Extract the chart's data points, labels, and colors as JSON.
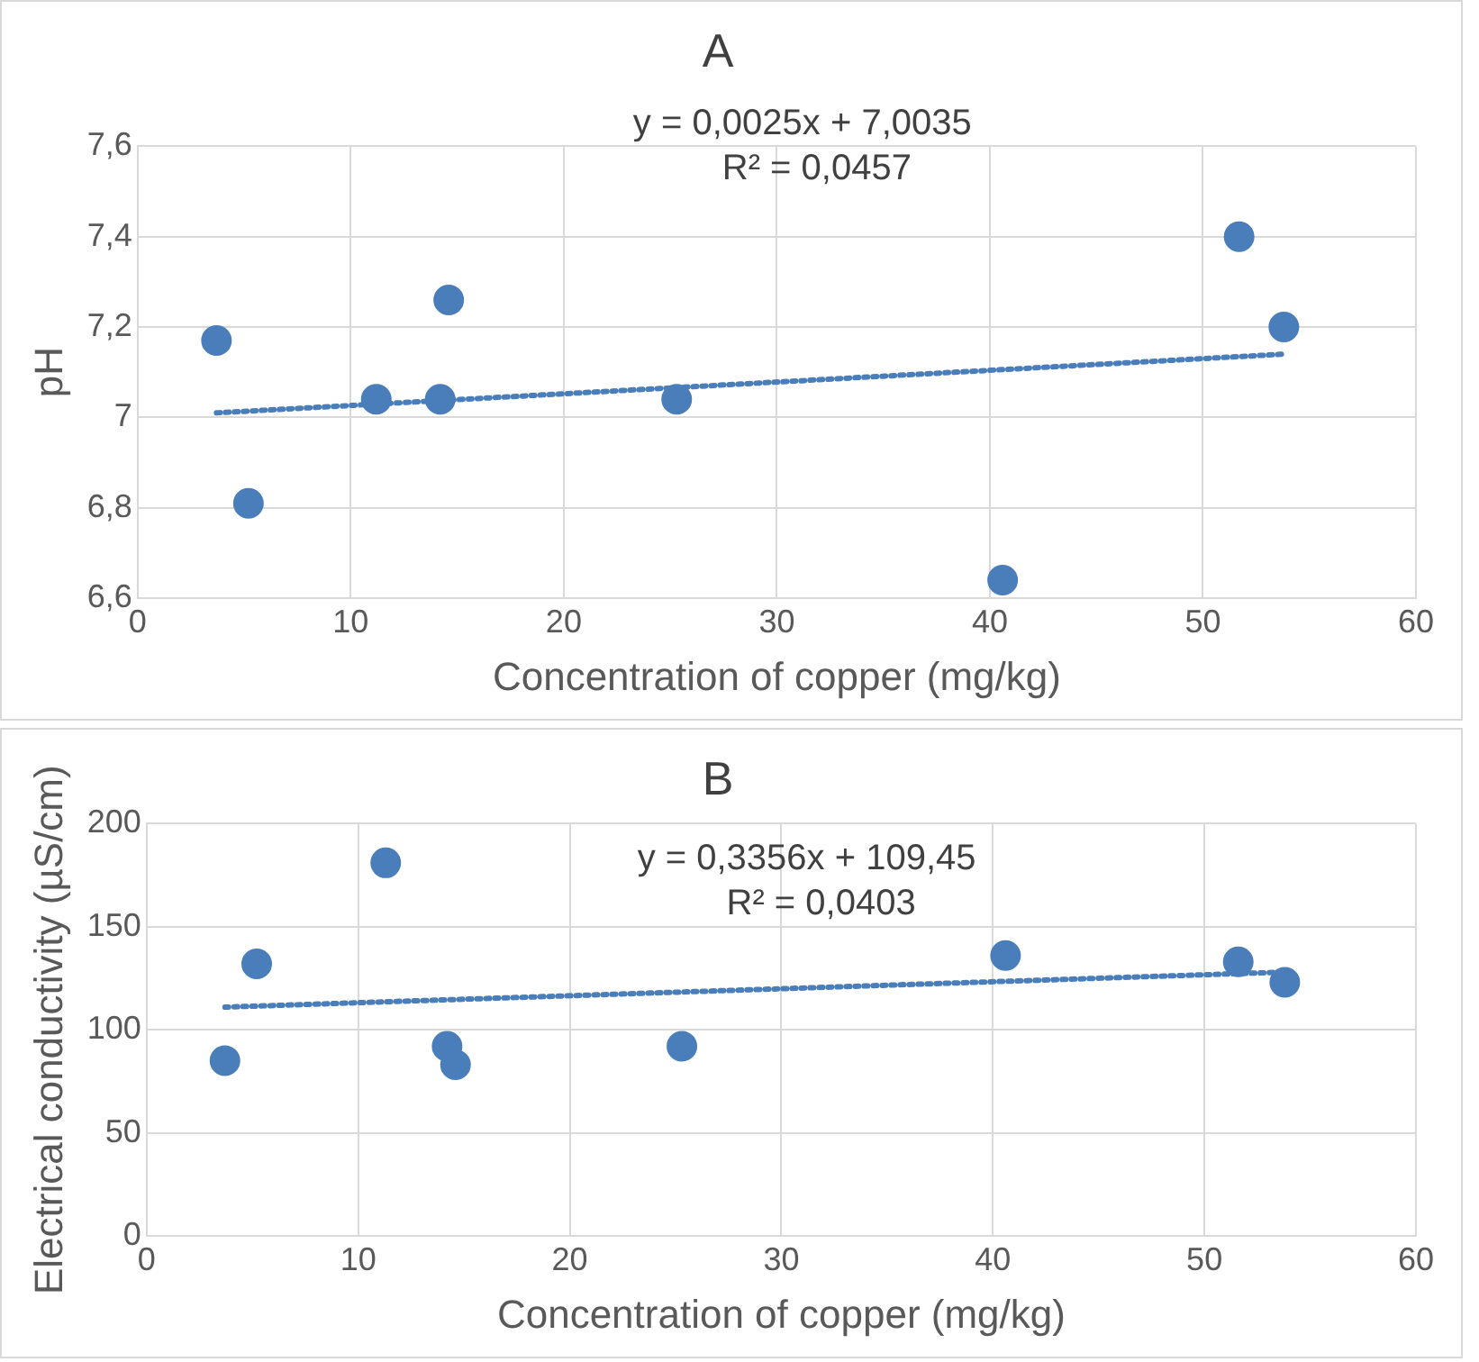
{
  "chart_data": [
    {
      "type": "scatter",
      "title": "A",
      "xlabel": "Concentration of copper (mg/kg)",
      "ylabel": "pH",
      "xlim": [
        0,
        60
      ],
      "xticks": [
        0,
        10,
        20,
        30,
        40,
        50,
        60
      ],
      "ylim": [
        6.6,
        7.6
      ],
      "yticks": [
        {
          "value": 6.6,
          "label": "6,6"
        },
        {
          "value": 6.8,
          "label": "6,8"
        },
        {
          "value": 7,
          "label": "7"
        },
        {
          "value": 7.2,
          "label": "7,2"
        },
        {
          "value": 7.4,
          "label": "7,4"
        },
        {
          "value": 7.6,
          "label": "7,6"
        }
      ],
      "grid": true,
      "legend": false,
      "annotations": [
        "y = 0,0025x + 7,0035",
        "R² = 0,0457"
      ],
      "series": [
        {
          "type": "scatter",
          "marker": "circle",
          "color": "#4a7ebb",
          "x": [
            3.7,
            5.2,
            11.2,
            14.2,
            14.6,
            25.3,
            40.6,
            51.7,
            53.8
          ],
          "values": [
            7.17,
            6.81,
            7.04,
            7.04,
            7.26,
            7.04,
            6.64,
            7.4,
            7.2
          ]
        },
        {
          "type": "line",
          "color": "#4a7ebb",
          "line_style": "dotted",
          "x": [
            3.7,
            53.8
          ],
          "values": [
            7.01,
            7.14
          ]
        }
      ]
    },
    {
      "type": "scatter",
      "title": "B",
      "xlabel": "Concentration of copper (mg/kg)",
      "ylabel": "Electrical conductivity (µS/cm)",
      "xlim": [
        0,
        60
      ],
      "xticks": [
        0,
        10,
        20,
        30,
        40,
        50,
        60
      ],
      "ylim": [
        0,
        200
      ],
      "yticks": [
        0,
        50,
        100,
        150,
        200
      ],
      "grid": true,
      "legend": false,
      "annotations": [
        "y = 0,3356x + 109,45",
        "R² = 0,0403"
      ],
      "series": [
        {
          "type": "scatter",
          "marker": "circle",
          "color": "#4a7ebb",
          "x": [
            3.7,
            5.2,
            11.3,
            14.2,
            14.6,
            25.3,
            40.6,
            51.6,
            53.8
          ],
          "values": [
            85,
            132,
            181,
            92,
            83,
            92,
            136,
            133,
            123
          ]
        },
        {
          "type": "line",
          "color": "#4a7ebb",
          "line_style": "dotted",
          "x": [
            3.7,
            53.8
          ],
          "values": [
            111,
            128
          ]
        }
      ]
    }
  ]
}
